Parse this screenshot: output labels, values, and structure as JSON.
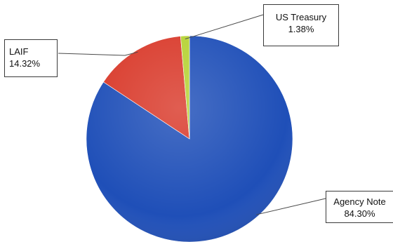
{
  "chart_data": {
    "type": "pie",
    "title": "",
    "slices": [
      {
        "label": "Agency Note",
        "value": 84.3,
        "value_text": "84.30%",
        "color": "#1f4fb8"
      },
      {
        "label": "LAIF",
        "value": 14.32,
        "value_text": "14.32%",
        "color": "#d93a2b"
      },
      {
        "label": "US Treasury",
        "value": 1.38,
        "value_text": "1.38%",
        "color": "#b5d233"
      }
    ],
    "legend": "none",
    "style": "3d-shaded"
  }
}
